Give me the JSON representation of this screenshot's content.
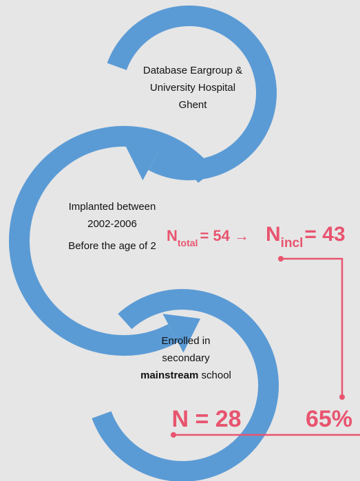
{
  "nodes": [
    {
      "lines": [
        "Database Eargroup &",
        "University Hospital",
        "Ghent"
      ]
    },
    {
      "lines": [
        "Implanted between",
        "2002-2006",
        "Before the age of 2"
      ]
    },
    {
      "lines": [
        "Enrolled in",
        "secondary"
      ],
      "emphasis": "mainstream",
      "rest": " school"
    }
  ],
  "annotations": {
    "total": {
      "symbol": "N",
      "subscript": "total",
      "text": "= 54 →"
    },
    "included": {
      "symbol": "N",
      "subscript": "incl",
      "text": "= 43"
    },
    "final": "N = 28",
    "percentage": "65%"
  }
}
